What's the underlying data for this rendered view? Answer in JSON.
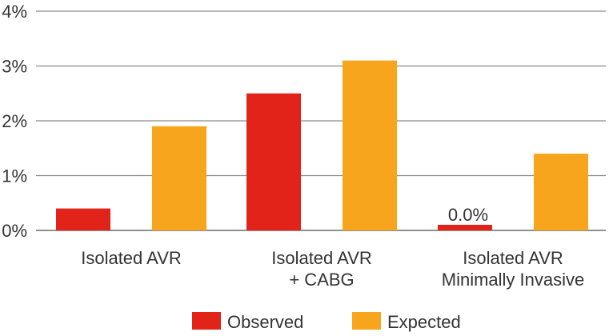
{
  "chart_data": {
    "type": "bar",
    "title": "",
    "xlabel": "",
    "ylabel": "",
    "ylim": [
      0,
      4
    ],
    "yticks": [
      "0%",
      "1%",
      "2%",
      "3%",
      "4%"
    ],
    "grid": true,
    "legend_position": "bottom",
    "categories": [
      [
        "Isolated AVR"
      ],
      [
        "Isolated AVR",
        "+ CABG"
      ],
      [
        "Isolated AVR",
        "Minimally Invasive"
      ]
    ],
    "series": [
      {
        "name": "Observed",
        "color": "#e2231a",
        "values": [
          0.4,
          2.5,
          0.0
        ]
      },
      {
        "name": "Expected",
        "color": "#f7a51c",
        "values": [
          1.9,
          3.1,
          1.4
        ]
      }
    ],
    "annotations": [
      {
        "series": 0,
        "category": 2,
        "text": "0.0%"
      }
    ]
  }
}
